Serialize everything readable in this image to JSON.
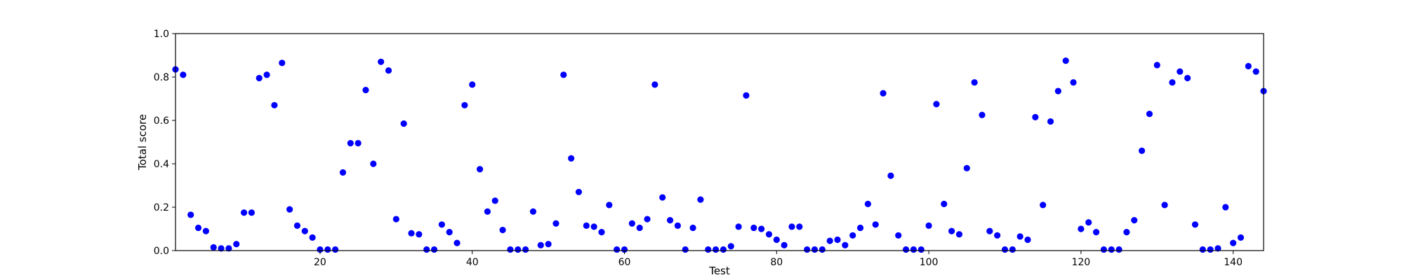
{
  "chart_data": {
    "type": "scatter",
    "title": "",
    "xlabel": "Test",
    "ylabel": "Total score",
    "xlim": [
      1,
      144
    ],
    "ylim": [
      0,
      1.0
    ],
    "x_ticks": [
      20,
      40,
      60,
      80,
      100,
      120,
      140
    ],
    "y_ticks": [
      0.0,
      0.2,
      0.4,
      0.6,
      0.8,
      1.0
    ],
    "y_tick_labels": [
      "0.0",
      "0.2",
      "0.4",
      "0.6",
      "0.8",
      "1.0"
    ],
    "grid": false,
    "marker_color": "#0000ff",
    "series": [
      {
        "x": [
          1,
          2,
          3,
          4,
          5,
          6,
          7,
          8,
          9,
          10,
          11,
          12,
          13,
          14,
          15,
          16,
          17,
          18,
          19,
          20,
          21,
          22,
          23,
          24,
          25,
          26,
          27,
          28,
          29,
          30,
          31,
          32,
          33,
          34,
          35,
          36,
          37,
          38,
          39,
          40,
          41,
          42,
          43,
          44,
          45,
          46,
          47,
          48,
          49,
          50,
          51,
          52,
          53,
          54,
          55,
          56,
          57,
          58,
          59,
          60,
          61,
          62,
          63,
          64,
          65,
          66,
          67,
          68,
          69,
          70,
          71,
          72,
          73,
          74,
          75,
          76,
          77,
          78,
          79,
          80,
          81,
          82,
          83,
          84,
          85,
          86,
          87,
          88,
          89,
          90,
          91,
          92,
          93,
          94,
          95,
          96,
          97,
          98,
          99,
          100,
          101,
          102,
          103,
          104,
          105,
          106,
          107,
          108,
          109,
          110,
          111,
          112,
          113,
          114,
          115,
          116,
          117,
          118,
          119,
          120,
          121,
          122,
          123,
          124,
          125,
          126,
          127,
          128,
          129,
          130,
          131,
          132,
          133,
          134,
          135,
          136,
          137,
          138,
          139,
          140,
          141,
          142,
          143,
          144
        ],
        "y": [
          0.835,
          0.81,
          0.165,
          0.105,
          0.09,
          0.015,
          0.01,
          0.01,
          0.03,
          0.175,
          0.175,
          0.795,
          0.81,
          0.67,
          0.865,
          0.19,
          0.115,
          0.09,
          0.06,
          0.005,
          0.005,
          0.005,
          0.36,
          0.495,
          0.495,
          0.74,
          0.4,
          0.87,
          0.83,
          0.145,
          0.585,
          0.08,
          0.075,
          0.005,
          0.005,
          0.12,
          0.085,
          0.035,
          0.67,
          0.765,
          0.375,
          0.18,
          0.23,
          0.095,
          0.005,
          0.005,
          0.005,
          0.18,
          0.025,
          0.03,
          0.125,
          0.81,
          0.425,
          0.27,
          0.115,
          0.11,
          0.085,
          0.21,
          0.005,
          0.005,
          0.125,
          0.105,
          0.145,
          0.765,
          0.245,
          0.14,
          0.115,
          0.005,
          0.105,
          0.235,
          0.005,
          0.005,
          0.005,
          0.02,
          0.11,
          0.715,
          0.105,
          0.1,
          0.075,
          0.05,
          0.025,
          0.11,
          0.11,
          0.005,
          0.005,
          0.005,
          0.045,
          0.05,
          0.025,
          0.07,
          0.105,
          0.215,
          0.12,
          0.725,
          0.345,
          0.07,
          0.005,
          0.005,
          0.005,
          0.115,
          0.675,
          0.215,
          0.09,
          0.075,
          0.38,
          0.775,
          0.625,
          0.09,
          0.07,
          0.005,
          0.005,
          0.065,
          0.05,
          0.615,
          0.21,
          0.595,
          0.735,
          0.875,
          0.775,
          0.1,
          0.13,
          0.085,
          0.005,
          0.005,
          0.005,
          0.085,
          0.14,
          0.46,
          0.63,
          0.855,
          0.21,
          0.775,
          0.825,
          0.795,
          0.12,
          0.005,
          0.005,
          0.01,
          0.2,
          0.035,
          0.06,
          0.85,
          0.825,
          0.735
        ]
      }
    ]
  }
}
